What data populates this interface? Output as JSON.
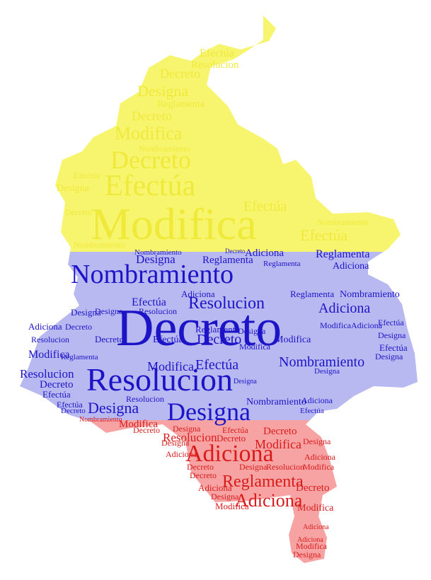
{
  "image": {
    "subject": "word cloud",
    "bands": [
      {
        "name": "yellow",
        "color": "#f7f56e",
        "text_color": "#f2ee3a"
      },
      {
        "name": "blue",
        "color": "#b9b9f2",
        "text_color": "#1a12c9"
      },
      {
        "name": "red",
        "color": "#f7a3a3",
        "text_color": "#d81c1c"
      }
    ]
  },
  "words": {
    "decreto": "Decreto",
    "resolucion": "Resolucion",
    "nombramiento": "Nombramiento",
    "designa": "Designa",
    "modifica": "Modifica",
    "efectua": "Efectúa",
    "adiciona": "Adiciona",
    "reglamenta": "Reglamenta"
  }
}
